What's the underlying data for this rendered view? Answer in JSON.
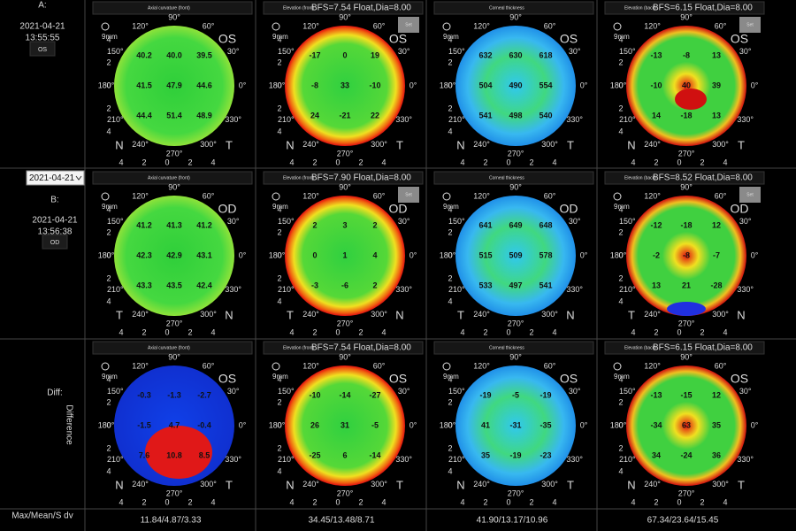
{
  "sidebar": {
    "row_a": {
      "label": "A:",
      "date": "2021-04-21",
      "time": "13:55:55",
      "eye": "OS"
    },
    "row_b": {
      "select": "2021-04-21",
      "label": "B:",
      "date": "2021-04-21",
      "time": "13:56:38",
      "eye": "OD"
    },
    "diff": {
      "label": "Diff:",
      "vertical": "Difference"
    },
    "stats_label": "Max/Mean/S dv"
  },
  "axis": {
    "angles": [
      "90°",
      "120°",
      "60°",
      "150°",
      "30°",
      "180°",
      "0°",
      "210°",
      "330°",
      "240°",
      "300°",
      "270°"
    ],
    "ticks": [
      "4",
      "2",
      "0",
      "2",
      "4"
    ],
    "scale": "9mm"
  },
  "set_button": "Set",
  "panels": [
    [
      {
        "title": "Axial curvature (front)",
        "eye": "OS",
        "left": "N",
        "right": "T",
        "values": [
          "40.2",
          "40.0",
          "39.5",
          "41.5",
          "47.9",
          "44.6",
          "44.4",
          "51.4",
          "48.9"
        ]
      },
      {
        "title": "Elevation (front)",
        "bfs": "BFS=7.54 Float,Dia=8.00",
        "eye": "OS",
        "left": "N",
        "right": "T",
        "values": [
          "-17",
          "0",
          "19",
          "-8",
          "33",
          "-10",
          "24",
          "-21",
          "22"
        ]
      },
      {
        "title": "Corneal thickness",
        "eye": "OS",
        "left": "N",
        "right": "T",
        "values": [
          "632",
          "630",
          "618",
          "504",
          "490",
          "554",
          "541",
          "498",
          "540"
        ]
      },
      {
        "title": "Elevation (back)",
        "bfs": "BFS=6.15 Float,Dia=8.00",
        "eye": "OS",
        "left": "N",
        "right": "T",
        "values": [
          "-13",
          "-8",
          "13",
          "-10",
          "40",
          "39",
          "14",
          "-18",
          "13"
        ]
      }
    ],
    [
      {
        "title": "Axial curvature (front)",
        "eye": "OD",
        "left": "T",
        "right": "N",
        "values": [
          "41.2",
          "41.3",
          "41.2",
          "42.3",
          "42.9",
          "43.1",
          "43.3",
          "43.5",
          "42.4"
        ]
      },
      {
        "title": "Elevation (front)",
        "bfs": "BFS=7.90 Float,Dia=8.00",
        "eye": "OD",
        "left": "T",
        "right": "N",
        "values": [
          "2",
          "3",
          "2",
          "0",
          "1",
          "4",
          "-3",
          "-6",
          "2"
        ]
      },
      {
        "title": "Corneal thickness",
        "eye": "OD",
        "left": "T",
        "right": "N",
        "values": [
          "641",
          "649",
          "648",
          "515",
          "509",
          "578",
          "533",
          "497",
          "541"
        ]
      },
      {
        "title": "Elevation (back)",
        "bfs": "BFS=8.52 Float,Dia=8.00",
        "eye": "OD",
        "left": "T",
        "right": "N",
        "values": [
          "-12",
          "-18",
          "12",
          "-2",
          "-8",
          "-7",
          "13",
          "21",
          "-28"
        ]
      }
    ],
    [
      {
        "title": "Axial curvature (front)",
        "eye": "OS",
        "left": "N",
        "right": "T",
        "values": [
          "-0.3",
          "-1.3",
          "-2.7",
          "-1.5",
          "4.7",
          "-0.4",
          "7.6",
          "10.8",
          "8.5"
        ]
      },
      {
        "title": "Elevation (front)",
        "bfs": "BFS=7.54 Float,Dia=8.00",
        "eye": "OS",
        "left": "N",
        "right": "T",
        "values": [
          "-10",
          "-14",
          "-27",
          "26",
          "31",
          "-5",
          "-25",
          "6",
          "-14"
        ]
      },
      {
        "title": "Corneal thickness",
        "eye": "OS",
        "left": "N",
        "right": "T",
        "values": [
          "-19",
          "-5",
          "-19",
          "41",
          "-31",
          "-35",
          "35",
          "-19",
          "-23"
        ]
      },
      {
        "title": "Elevation (back)",
        "bfs": "BFS=6.15 Float,Dia=8.00",
        "eye": "OS",
        "left": "N",
        "right": "T",
        "values": [
          "-13",
          "-15",
          "12",
          "-34",
          "63",
          "35",
          "34",
          "-24",
          "36"
        ]
      }
    ]
  ],
  "stats": [
    "11.84/4.87/3.33",
    "34.45/13.48/8.71",
    "41.90/13.17/10.96",
    "67.34/23.64/15.45"
  ]
}
